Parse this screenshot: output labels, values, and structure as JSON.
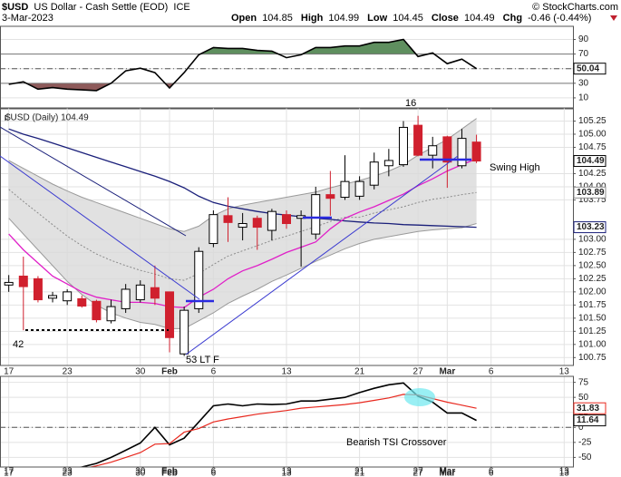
{
  "header": {
    "symbol": "$USD",
    "name": "US Dollar - Cash Settle (EOD)",
    "exchange": "ICE",
    "copyright": "© StockCharts.com",
    "date": "3-Mar-2023",
    "quote": [
      {
        "label": "Open",
        "value": 104.85
      },
      {
        "label": "High",
        "value": 104.99
      },
      {
        "label": "Low",
        "value": 104.45
      },
      {
        "label": "Close",
        "value": 104.49
      },
      {
        "label": "Chg",
        "value": "-0.46 (-0.44%)"
      }
    ]
  },
  "chart_data": [
    {
      "type": "line",
      "xlim": [
        -0.6,
        38.6
      ],
      "ylim": [
        -5,
        108
      ],
      "yticks": [
        90,
        70,
        50,
        30,
        10
      ],
      "grid": true,
      "upper_level": 70,
      "lower_level": 30,
      "upper_color": "#5f8f5f",
      "lower_color": "#8e5a5a",
      "series": [
        {
          "color": "#000000",
          "last_box": true,
          "values": [
            28.5,
            32,
            22,
            24,
            22,
            21,
            20,
            30,
            47,
            50.6,
            44.5,
            23.5,
            44.5,
            69,
            79,
            77.7,
            77.7,
            75,
            74,
            65,
            69,
            79,
            79,
            81,
            81,
            86,
            86,
            90,
            66.6,
            71.5,
            56.8,
            63,
            50.04
          ]
        }
      ]
    },
    {
      "type": "candlestick",
      "title": "$USD (Daily) 104.49",
      "xlim": [
        -0.6,
        38.6
      ],
      "ylim": [
        100.6,
        105.5
      ],
      "xticks": [
        {
          "value": 0,
          "label": "17"
        },
        {
          "value": 4,
          "label": "23"
        },
        {
          "value": 9,
          "label": "30"
        },
        {
          "value": 11,
          "label": "Feb"
        },
        {
          "value": 14,
          "label": "6"
        },
        {
          "value": 19,
          "label": "13"
        },
        {
          "value": 24,
          "label": "21"
        },
        {
          "value": 28,
          "label": "27"
        },
        {
          "value": 30,
          "label": "Mar"
        },
        {
          "value": 33,
          "label": "6"
        },
        {
          "value": 38,
          "label": "13"
        }
      ],
      "yticks": [
        105.25,
        {
          "value": 105,
          "label": "105.00"
        },
        104.75,
        104.25,
        {
          "value": 104,
          "label": "104.00"
        },
        103.75,
        {
          "value": 103,
          "label": "103.00"
        },
        102.75,
        {
          "value": 102.5,
          "label": "102.50"
        },
        102.25,
        {
          "value": 102,
          "label": "102.00"
        },
        101.75,
        {
          "value": 101.5,
          "label": "101.50"
        },
        101.25,
        {
          "value": 101,
          "label": "101.00"
        },
        100.75
      ],
      "grid": true,
      "up_color": "#ffffff",
      "down_color": "#d0202e",
      "open": [
        102.13,
        102.3,
        102.25,
        101.88,
        101.83,
        101.87,
        101.82,
        101.45,
        101.68,
        101.85,
        102.08,
        102.0,
        100.82,
        101.68,
        102.92,
        103.45,
        103.23,
        103.4,
        103.17,
        103.47,
        103.4,
        103.1,
        103.85,
        103.8,
        103.82,
        104.03,
        104.4,
        104.42,
        105.17,
        104.6,
        104.95,
        104.4,
        104.85
      ],
      "high": [
        102.32,
        102.67,
        102.3,
        102.0,
        102.05,
        101.93,
        101.85,
        101.85,
        102.15,
        102.22,
        102.5,
        102.0,
        101.72,
        102.85,
        103.55,
        103.8,
        103.5,
        103.45,
        103.58,
        103.55,
        103.55,
        104.0,
        104.3,
        104.6,
        104.2,
        104.65,
        104.72,
        105.25,
        105.35,
        104.95,
        104.97,
        105.1,
        104.99
      ],
      "low": [
        102.0,
        101.27,
        101.8,
        101.8,
        101.75,
        101.7,
        101.42,
        101.4,
        101.6,
        101.8,
        101.75,
        100.85,
        100.78,
        101.6,
        102.85,
        102.95,
        102.98,
        102.8,
        102.98,
        103.2,
        102.48,
        103.0,
        103.45,
        103.75,
        103.75,
        103.95,
        104.2,
        104.38,
        104.58,
        104.35,
        103.98,
        104.35,
        104.45
      ],
      "close": [
        102.18,
        102.1,
        101.85,
        101.93,
        102.0,
        101.73,
        101.47,
        101.72,
        102.05,
        102.13,
        101.88,
        101.13,
        101.65,
        102.77,
        103.47,
        103.32,
        103.3,
        103.23,
        103.53,
        103.3,
        103.45,
        103.85,
        103.78,
        104.1,
        104.1,
        104.47,
        104.5,
        105.13,
        104.6,
        104.78,
        104.47,
        104.92,
        104.49
      ],
      "band": {
        "color": "#d9d9d9",
        "edge_color": "#9a9a9a",
        "upper": [
          104.5,
          104.35,
          104.2,
          104.05,
          103.92,
          103.8,
          103.7,
          103.6,
          103.5,
          103.4,
          103.3,
          103.2,
          103.15,
          103.25,
          103.45,
          103.58,
          103.65,
          103.7,
          103.75,
          103.8,
          103.85,
          103.9,
          103.98,
          104.05,
          104.12,
          104.2,
          104.3,
          104.42,
          104.6,
          104.75,
          104.9,
          105.1,
          105.3
        ],
        "lower": [
          103.4,
          103.1,
          102.8,
          102.5,
          102.2,
          101.95,
          101.75,
          101.6,
          101.5,
          101.42,
          101.38,
          101.3,
          101.3,
          101.45,
          101.6,
          101.78,
          101.92,
          102.05,
          102.2,
          102.32,
          102.45,
          102.58,
          102.7,
          102.82,
          102.92,
          103.0,
          103.05,
          103.1,
          103.15,
          103.18,
          103.2,
          103.22,
          103.3
        ]
      },
      "overlays": [
        {
          "color": "#8c8c8c",
          "dash": true,
          "last_box": true,
          "values": [
            103.95,
            103.72,
            103.5,
            103.28,
            103.06,
            102.88,
            102.72,
            102.6,
            102.5,
            102.41,
            102.34,
            102.25,
            102.22,
            102.35,
            102.52,
            102.68,
            102.78,
            102.88,
            102.98,
            103.06,
            103.15,
            103.24,
            103.34,
            103.42,
            103.42,
            103.5,
            103.56,
            103.62,
            103.7,
            103.76,
            103.8,
            103.85,
            103.89
          ]
        },
        {
          "color": "#1a1f7a",
          "dash": false,
          "last_box": true,
          "values": [
            105.1,
            105.0,
            104.92,
            104.83,
            104.74,
            104.65,
            104.56,
            104.47,
            104.38,
            104.29,
            104.2,
            104.1,
            103.98,
            103.82,
            103.7,
            103.63,
            103.58,
            103.53,
            103.49,
            103.46,
            103.43,
            103.4,
            103.38,
            103.35,
            103.33,
            103.31,
            103.3,
            103.28,
            103.27,
            103.26,
            103.25,
            103.24,
            103.23
          ]
        },
        {
          "color": "#e020c8",
          "dash": false,
          "last_box": false,
          "values": [
            103.1,
            102.8,
            102.55,
            102.3,
            102.15,
            102.0,
            101.9,
            101.85,
            101.8,
            101.8,
            101.78,
            101.72,
            101.7,
            101.9,
            102.05,
            102.25,
            102.4,
            102.5,
            102.62,
            102.75,
            102.85,
            102.95,
            103.2,
            103.4,
            103.52,
            103.62,
            103.74,
            103.86,
            104.02,
            104.15,
            104.3,
            104.42,
            104.53
          ]
        }
      ],
      "annotations": [
        "42",
        "53 LT F",
        "16",
        "Swing High"
      ]
    },
    {
      "type": "line",
      "xlim": [
        -0.6,
        38.6
      ],
      "ylim": [
        -66,
        85
      ],
      "xticks": [
        {
          "value": 0,
          "label": "17"
        },
        {
          "value": 4,
          "label": "23"
        },
        {
          "value": 9,
          "label": "30"
        },
        {
          "value": 11,
          "label": "Feb"
        },
        {
          "value": 14,
          "label": "6"
        },
        {
          "value": 19,
          "label": "13"
        },
        {
          "value": 24,
          "label": "21"
        },
        {
          "value": 28,
          "label": "27"
        },
        {
          "value": 30,
          "label": "Mar"
        },
        {
          "value": 33,
          "label": "6"
        },
        {
          "value": 38,
          "label": "13"
        }
      ],
      "yticks": [
        75,
        50,
        25,
        0,
        -25,
        -50
      ],
      "grid": true,
      "annotations": [
        "Bearish TSI Crossover"
      ],
      "series": [
        {
          "color": "#000000",
          "last_box": true,
          "values": [
            -70,
            -71,
            -70,
            -70,
            -69,
            -66,
            -60,
            -50,
            -38,
            -26,
            0,
            -29,
            -18,
            9,
            36,
            39,
            36,
            39,
            38,
            39,
            44,
            44,
            47,
            50,
            58,
            65,
            71,
            74,
            52,
            42,
            24,
            24,
            11.64
          ]
        },
        {
          "color": "#e8281e",
          "last_box": true,
          "values": [
            -80,
            -78,
            -76,
            -74,
            -72,
            -69,
            -64,
            -58,
            -50,
            -42,
            -28,
            -27,
            -8,
            -2,
            9,
            14,
            18,
            22,
            25,
            28,
            32,
            34,
            36,
            38,
            41,
            45,
            49,
            55,
            54,
            48,
            42,
            37,
            31.83
          ]
        }
      ]
    }
  ]
}
